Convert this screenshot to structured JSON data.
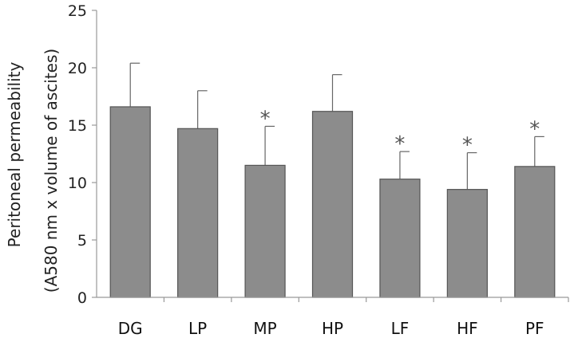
{
  "chart_data": {
    "type": "bar",
    "title": "",
    "xlabel": "",
    "ylabel": "Peritoneal permeability",
    "ylabel_sub": "(A580 nm x volume of ascites)",
    "ylim": [
      0,
      25
    ],
    "yticks": [
      0,
      5,
      10,
      15,
      20,
      25
    ],
    "categories": [
      "DG",
      "LP",
      "MP",
      "HP",
      "LF",
      "HF",
      "PF"
    ],
    "values": [
      16.6,
      14.7,
      11.5,
      16.2,
      10.3,
      9.4,
      11.4
    ],
    "error_plus": [
      3.8,
      3.3,
      3.4,
      3.2,
      2.4,
      3.2,
      2.6
    ],
    "significance": [
      "",
      "",
      "*",
      "",
      "*",
      "*",
      "*"
    ],
    "grid": false,
    "bar_color": "#8c8c8c",
    "bar_stroke": "#555555"
  }
}
